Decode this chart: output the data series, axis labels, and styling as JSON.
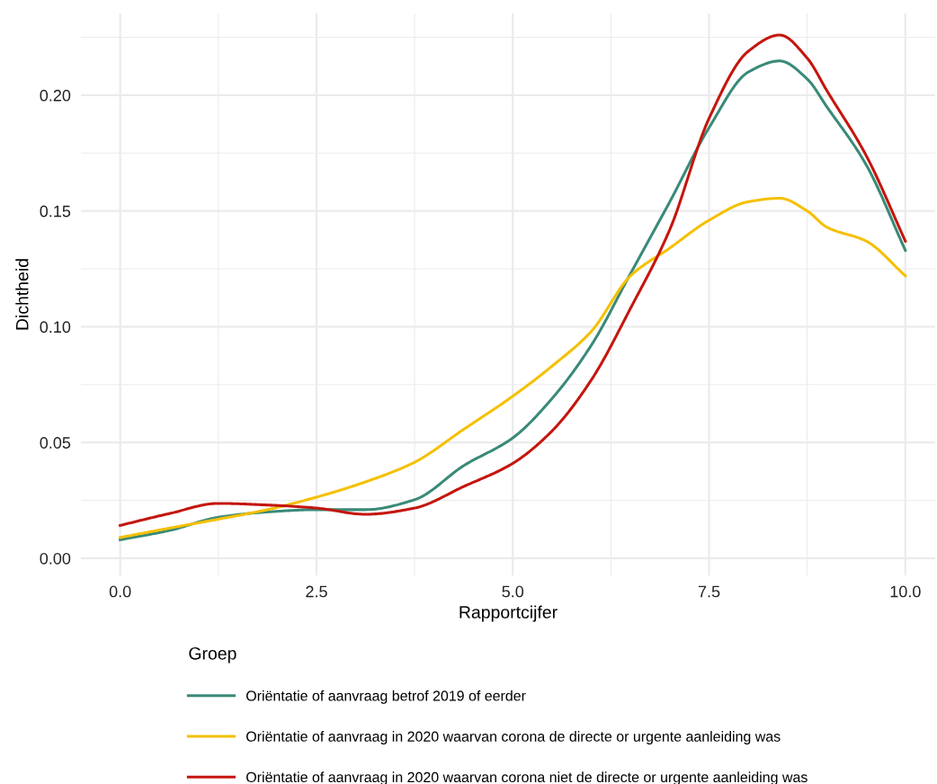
{
  "chart_data": {
    "type": "line",
    "xlabel": "Rapportcijfer",
    "ylabel": "Dichtheid",
    "legend_title": "Groep",
    "x": [
      0,
      0.625,
      1.25,
      1.875,
      2.5,
      3.125,
      3.75,
      4.375,
      5,
      5.5,
      6,
      6.5,
      7,
      7.5,
      8,
      8.4,
      8.75,
      9,
      9.5,
      10
    ],
    "series": [
      {
        "name": "Oriëntatie of aanvraag betrof 2019 of eerder",
        "color": "#3a8a78",
        "values": [
          0.008,
          0.012,
          0.0177,
          0.02,
          0.021,
          0.021,
          0.0253,
          0.04,
          0.052,
          0.069,
          0.092,
          0.123,
          0.154,
          0.186,
          0.21,
          0.2148,
          0.207,
          0.195,
          0.17,
          0.133
        ]
      },
      {
        "name": "Oriëntatie of aanvraag in 2020 waarvan corona de directe or urgente aanleiding was",
        "color": "#f5c000",
        "values": [
          0.009,
          0.013,
          0.0169,
          0.021,
          0.0264,
          0.033,
          0.0415,
          0.0557,
          0.07,
          0.083,
          0.098,
          0.122,
          0.134,
          0.146,
          0.154,
          0.1555,
          0.15,
          0.143,
          0.137,
          0.122
        ]
      },
      {
        "name": "Oriëntatie of aanvraag in 2020 waarvan corona niet de directe or urgente aanleiding was",
        "color": "#c4160e",
        "values": [
          0.0142,
          0.0193,
          0.0237,
          0.023,
          0.0217,
          0.019,
          0.0217,
          0.031,
          0.041,
          0.055,
          0.077,
          0.108,
          0.142,
          0.19,
          0.219,
          0.226,
          0.216,
          0.202,
          0.174,
          0.137
        ]
      }
    ],
    "xlim": [
      -0.5,
      10.38
    ],
    "xticks": [
      {
        "value": 0,
        "label": "0.0"
      },
      2.5,
      {
        "value": 5,
        "label": "5.0"
      },
      7.5,
      {
        "value": 10,
        "label": "10.0"
      }
    ],
    "ylim": [
      -0.0074,
      0.2353
    ],
    "yticks": [
      {
        "value": 0,
        "label": "0.00"
      },
      0.05,
      {
        "value": 0.1,
        "label": "0.10"
      },
      0.15,
      {
        "value": 0.2,
        "label": "0.20"
      }
    ],
    "grid": true,
    "legend": "bottom",
    "line_style": "solid"
  }
}
